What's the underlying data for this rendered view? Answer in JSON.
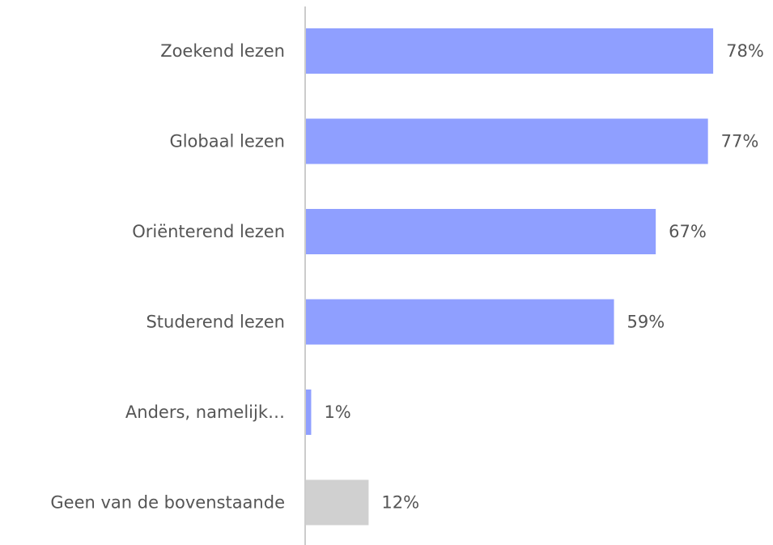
{
  "chart_data": {
    "type": "bar",
    "orientation": "horizontal",
    "categories": [
      "Zoekend lezen",
      "Globaal lezen",
      "Oriënterend lezen",
      "Studerend lezen",
      "Anders, namelijk…",
      "Geen van de bovenstaande"
    ],
    "values": [
      78,
      77,
      67,
      59,
      1,
      12
    ],
    "value_labels": [
      "78%",
      "77%",
      "67%",
      "59%",
      "1%",
      "12%"
    ],
    "colors": [
      "#8f9fff",
      "#8f9fff",
      "#8f9fff",
      "#8f9fff",
      "#8f9fff",
      "#d0d0d0"
    ]
  }
}
